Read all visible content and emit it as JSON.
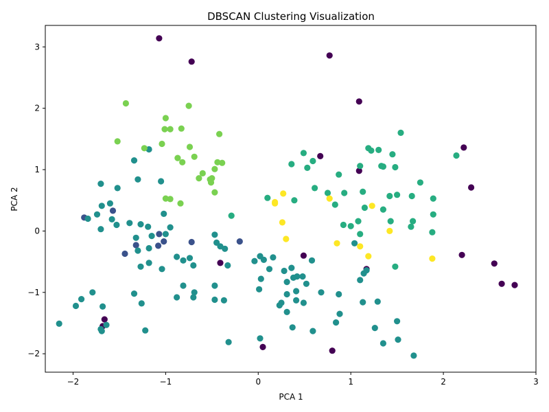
{
  "chart_data": {
    "type": "scatter",
    "title": "DBSCAN Clustering Visualization",
    "xlabel": "PCA 1",
    "ylabel": "PCA 2",
    "xlim": [
      -2.3,
      3.0
    ],
    "ylim": [
      -2.3,
      3.35
    ],
    "xticks": [
      -2,
      -1,
      0,
      1,
      2,
      3
    ],
    "yticks": [
      -2,
      -1,
      0,
      1,
      2,
      3
    ],
    "grid": false,
    "legend": "none",
    "colormap": "viridis",
    "series": [
      {
        "color": "#440154",
        "points": [
          [
            -1.07,
            3.14
          ],
          [
            -0.72,
            2.76
          ],
          [
            0.77,
            2.86
          ],
          [
            1.09,
            2.11
          ],
          [
            0.67,
            1.22
          ],
          [
            1.09,
            0.98
          ],
          [
            2.22,
            1.36
          ],
          [
            2.3,
            0.71
          ],
          [
            0.49,
            -0.4
          ],
          [
            -0.41,
            -0.52
          ],
          [
            1.17,
            -0.62
          ],
          [
            2.2,
            -0.39
          ],
          [
            2.55,
            -0.53
          ],
          [
            2.63,
            -0.86
          ],
          [
            2.77,
            -0.88
          ],
          [
            0.05,
            -1.89
          ],
          [
            0.8,
            -1.95
          ],
          [
            -1.66,
            -1.44
          ],
          [
            -1.68,
            -1.55
          ]
        ]
      },
      {
        "color": "#3b528b",
        "points": [
          [
            -1.88,
            0.22
          ],
          [
            -1.57,
            0.33
          ],
          [
            -1.44,
            -0.37
          ],
          [
            -1.32,
            -0.23
          ],
          [
            -1.07,
            -0.05
          ],
          [
            -1.08,
            -0.24
          ],
          [
            -1.02,
            -0.17
          ],
          [
            -0.72,
            -0.18
          ],
          [
            -0.2,
            -0.17
          ]
        ]
      },
      {
        "color": "#21908d",
        "points": [
          [
            -1.7,
            0.77
          ],
          [
            -1.52,
            0.7
          ],
          [
            -1.34,
            1.15
          ],
          [
            -1.3,
            0.84
          ],
          [
            -1.18,
            1.33
          ],
          [
            -1.05,
            0.81
          ],
          [
            -1.02,
            0.28
          ],
          [
            -0.95,
            0.06
          ],
          [
            -1.6,
            0.45
          ],
          [
            -1.74,
            0.27
          ],
          [
            -1.69,
            0.41
          ],
          [
            -1.84,
            0.2
          ],
          [
            -1.58,
            0.19
          ],
          [
            -1.53,
            0.1
          ],
          [
            -1.39,
            0.13
          ],
          [
            -1.27,
            0.11
          ],
          [
            -1.19,
            0.07
          ],
          [
            -1.7,
            0.03
          ],
          [
            -1.15,
            -0.08
          ],
          [
            -1.0,
            -0.05
          ],
          [
            -1.32,
            -0.11
          ],
          [
            -1.18,
            -0.28
          ],
          [
            -1.3,
            -0.32
          ],
          [
            -0.88,
            -0.42
          ],
          [
            -0.81,
            -0.48
          ],
          [
            -0.74,
            -0.44
          ],
          [
            -0.7,
            -0.56
          ],
          [
            -1.18,
            -0.52
          ],
          [
            -1.27,
            -0.58
          ],
          [
            -1.04,
            -0.62
          ],
          [
            -0.47,
            -0.06
          ],
          [
            -0.45,
            -0.19
          ],
          [
            -0.41,
            -0.25
          ],
          [
            -0.36,
            -0.29
          ],
          [
            -0.33,
            -0.56
          ],
          [
            -0.47,
            -0.89
          ],
          [
            -0.81,
            -0.89
          ],
          [
            -0.69,
            -1.0
          ],
          [
            -0.7,
            -1.08
          ],
          [
            -0.88,
            -1.08
          ],
          [
            -0.47,
            -1.12
          ],
          [
            -0.37,
            -1.13
          ],
          [
            -1.34,
            -1.02
          ],
          [
            -1.26,
            -1.18
          ],
          [
            -1.79,
            -1.0
          ],
          [
            -1.91,
            -1.11
          ],
          [
            -1.97,
            -1.22
          ],
          [
            -1.68,
            -1.23
          ],
          [
            -2.15,
            -1.51
          ],
          [
            -1.64,
            -1.53
          ],
          [
            -1.7,
            -1.6
          ],
          [
            -1.69,
            -1.63
          ],
          [
            -1.22,
            -1.62
          ],
          [
            -0.32,
            -1.81
          ],
          [
            -0.04,
            -0.49
          ],
          [
            0.02,
            -0.41
          ],
          [
            0.06,
            -0.47
          ],
          [
            0.16,
            -0.43
          ],
          [
            0.12,
            -0.62
          ],
          [
            0.03,
            -0.78
          ],
          [
            0.01,
            -0.95
          ],
          [
            0.28,
            -0.65
          ],
          [
            0.36,
            -0.6
          ],
          [
            0.42,
            -0.74
          ],
          [
            0.48,
            -0.74
          ],
          [
            0.38,
            -0.76
          ],
          [
            0.31,
            -0.83
          ],
          [
            0.52,
            -0.86
          ],
          [
            0.41,
            -0.98
          ],
          [
            0.31,
            -1.03
          ],
          [
            0.41,
            -1.13
          ],
          [
            0.49,
            -1.17
          ],
          [
            0.25,
            -1.17
          ],
          [
            0.23,
            -1.21
          ],
          [
            0.31,
            -1.32
          ],
          [
            0.37,
            -1.57
          ],
          [
            0.58,
            -0.48
          ],
          [
            0.68,
            -1.0
          ],
          [
            0.87,
            -1.03
          ],
          [
            0.88,
            -1.35
          ],
          [
            0.84,
            -1.49
          ],
          [
            0.59,
            -1.63
          ],
          [
            0.02,
            -1.75
          ],
          [
            1.04,
            -0.2
          ],
          [
            1.1,
            -0.8
          ],
          [
            1.14,
            -0.69
          ],
          [
            1.17,
            -0.64
          ],
          [
            1.13,
            -1.16
          ],
          [
            1.29,
            -1.15
          ],
          [
            1.26,
            -1.58
          ],
          [
            1.35,
            -1.83
          ],
          [
            1.5,
            -1.47
          ],
          [
            1.51,
            -1.77
          ],
          [
            1.68,
            -2.03
          ]
        ]
      },
      {
        "color": "#27ad81",
        "points": [
          [
            -0.29,
            0.25
          ],
          [
            0.1,
            0.54
          ],
          [
            0.36,
            1.09
          ],
          [
            0.39,
            0.5
          ],
          [
            0.49,
            1.27
          ],
          [
            0.53,
            1.03
          ],
          [
            0.59,
            1.14
          ],
          [
            0.61,
            0.7
          ],
          [
            0.75,
            0.62
          ],
          [
            0.87,
            0.92
          ],
          [
            0.83,
            0.43
          ],
          [
            0.92,
            0.1
          ],
          [
            1.0,
            0.08
          ],
          [
            0.93,
            0.62
          ],
          [
            1.08,
            0.16
          ],
          [
            1.1,
            1.06
          ],
          [
            1.13,
            0.64
          ],
          [
            1.15,
            0.38
          ],
          [
            1.1,
            -0.05
          ],
          [
            1.19,
            1.35
          ],
          [
            1.22,
            1.31
          ],
          [
            1.3,
            1.32
          ],
          [
            1.33,
            1.06
          ],
          [
            1.35,
            1.05
          ],
          [
            1.35,
            0.35
          ],
          [
            1.42,
            0.57
          ],
          [
            1.43,
            0.16
          ],
          [
            1.45,
            1.25
          ],
          [
            1.48,
            1.04
          ],
          [
            1.5,
            0.59
          ],
          [
            1.48,
            -0.58
          ],
          [
            1.54,
            1.6
          ],
          [
            1.65,
            0.07
          ],
          [
            1.67,
            0.16
          ],
          [
            1.66,
            0.57
          ],
          [
            1.75,
            0.79
          ],
          [
            1.88,
            -0.02
          ],
          [
            1.89,
            0.53
          ],
          [
            1.89,
            0.27
          ],
          [
            2.14,
            1.23
          ]
        ]
      },
      {
        "color": "#7ad151",
        "points": [
          [
            -1.43,
            2.08
          ],
          [
            -1.52,
            1.46
          ],
          [
            -1.23,
            1.35
          ],
          [
            -1.0,
            1.84
          ],
          [
            -0.75,
            2.04
          ],
          [
            -1.01,
            1.66
          ],
          [
            -0.95,
            1.66
          ],
          [
            -0.83,
            1.67
          ],
          [
            -1.04,
            1.42
          ],
          [
            -0.74,
            1.37
          ],
          [
            -0.69,
            1.21
          ],
          [
            -0.87,
            1.19
          ],
          [
            -0.82,
            1.12
          ],
          [
            -0.42,
            1.58
          ],
          [
            -0.44,
            1.12
          ],
          [
            -0.39,
            1.11
          ],
          [
            -0.47,
            1.01
          ],
          [
            -0.6,
            0.94
          ],
          [
            -0.64,
            0.86
          ],
          [
            -0.52,
            0.84
          ],
          [
            -0.5,
            0.86
          ],
          [
            -0.51,
            0.79
          ],
          [
            -0.47,
            0.63
          ],
          [
            -1.0,
            0.53
          ],
          [
            -0.95,
            0.52
          ],
          [
            -0.84,
            0.45
          ]
        ]
      },
      {
        "color": "#fde725",
        "points": [
          [
            0.27,
            0.61
          ],
          [
            0.18,
            0.47
          ],
          [
            0.18,
            0.45
          ],
          [
            0.26,
            0.14
          ],
          [
            0.3,
            -0.13
          ],
          [
            0.77,
            0.53
          ],
          [
            0.85,
            -0.2
          ],
          [
            1.1,
            -0.25
          ],
          [
            1.19,
            -0.41
          ],
          [
            1.23,
            0.41
          ],
          [
            1.42,
            0.0
          ],
          [
            1.88,
            -0.45
          ]
        ]
      }
    ]
  }
}
